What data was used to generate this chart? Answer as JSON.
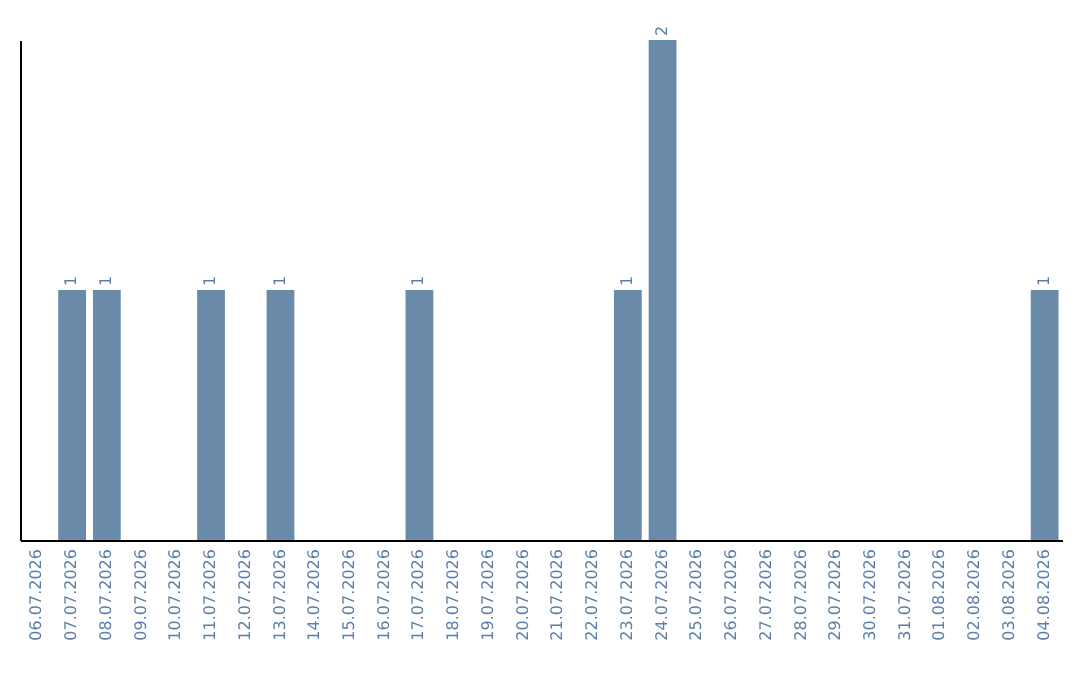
{
  "chart_data": {
    "type": "bar",
    "categories": [
      "06.07.2026",
      "07.07.2026",
      "08.07.2026",
      "09.07.2026",
      "10.07.2026",
      "11.07.2026",
      "12.07.2026",
      "13.07.2026",
      "14.07.2026",
      "15.07.2026",
      "16.07.2026",
      "17.07.2026",
      "18.07.2026",
      "19.07.2026",
      "20.07.2026",
      "21.07.2026",
      "22.07.2026",
      "23.07.2026",
      "24.07.2026",
      "25.07.2026",
      "26.07.2026",
      "27.07.2026",
      "28.07.2026",
      "29.07.2026",
      "30.07.2026",
      "31.07.2026",
      "01.08.2026",
      "02.08.2026",
      "03.08.2026",
      "04.08.2026"
    ],
    "values": [
      0,
      1,
      1,
      0,
      0,
      1,
      0,
      1,
      0,
      0,
      0,
      1,
      0,
      0,
      0,
      0,
      0,
      1,
      2,
      0,
      0,
      0,
      0,
      0,
      0,
      0,
      0,
      0,
      0,
      1
    ],
    "value_labels": [
      null,
      "1",
      "1",
      null,
      null,
      "1",
      null,
      "1",
      null,
      null,
      null,
      "1",
      null,
      null,
      null,
      null,
      null,
      "1",
      "2",
      null,
      null,
      null,
      null,
      null,
      null,
      null,
      null,
      null,
      null,
      "1"
    ],
    "color": "#6a8aaa",
    "ylim": [
      0,
      2
    ],
    "tick_labels": "x"
  }
}
